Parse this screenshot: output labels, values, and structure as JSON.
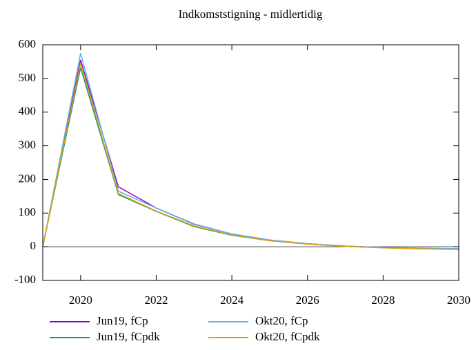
{
  "chart_data": {
    "type": "line",
    "title": "Indkomststigning - midlertidig",
    "x": [
      2019,
      2020,
      2021,
      2022,
      2023,
      2024,
      2025,
      2026,
      2027,
      2028,
      2029,
      2030
    ],
    "xlim": [
      2019,
      2030
    ],
    "xticks": [
      2020,
      2022,
      2024,
      2026,
      2028,
      2030
    ],
    "ylim": [
      -100,
      600
    ],
    "yticks": [
      -100,
      0,
      100,
      200,
      300,
      400,
      500,
      600
    ],
    "zeroline": true,
    "legend": "bottom",
    "series": [
      {
        "name": "Jun19, fCp",
        "color": "#9400d3",
        "values": [
          0,
          555,
          178,
          115,
          67,
          38,
          20,
          9,
          2,
          -2,
          -5,
          -6
        ]
      },
      {
        "name": "Jun19, fCpdk",
        "color": "#009e73",
        "values": [
          0,
          532,
          155,
          105,
          60,
          34,
          18,
          8,
          1,
          -3,
          -6,
          -8
        ]
      },
      {
        "name": "Okt20, fCp",
        "color": "#56b4e9",
        "values": [
          0,
          575,
          165,
          115,
          68,
          38,
          20,
          9,
          2,
          -2,
          -4,
          -6
        ]
      },
      {
        "name": "Okt20, fCpdk",
        "color": "#e69f00",
        "values": [
          0,
          545,
          158,
          106,
          62,
          35,
          18,
          8,
          1,
          -3,
          -6,
          -8
        ]
      }
    ]
  }
}
